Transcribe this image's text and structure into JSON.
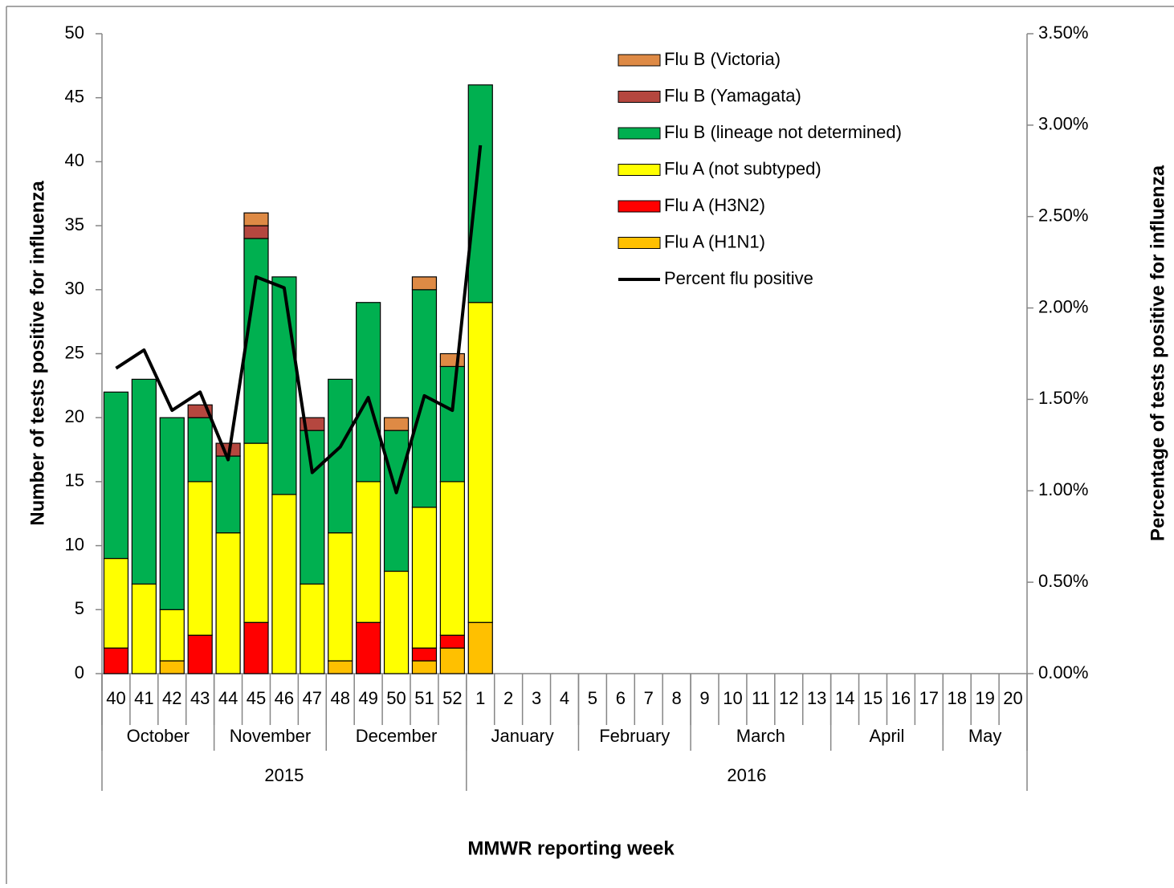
{
  "chart_data": {
    "type": "bar",
    "stacked": true,
    "x_title": "MMWR reporting week",
    "y_title": "Number of tests positive for influenza",
    "y2_title": "Percentage  of  tests  positive for influenza",
    "categories": [
      "40",
      "41",
      "42",
      "43",
      "44",
      "45",
      "46",
      "47",
      "48",
      "49",
      "50",
      "51",
      "52",
      "1",
      "2",
      "3",
      "4",
      "5",
      "6",
      "7",
      "8",
      "9",
      "10",
      "11",
      "12",
      "13",
      "14",
      "15",
      "16",
      "17",
      "18",
      "19",
      "20"
    ],
    "months": [
      "October",
      null,
      null,
      null,
      "November",
      null,
      null,
      null,
      "December",
      null,
      null,
      null,
      null,
      "January",
      null,
      null,
      null,
      "February",
      null,
      null,
      null,
      "March",
      null,
      null,
      null,
      null,
      "April",
      null,
      null,
      null,
      "May",
      null,
      null
    ],
    "years": [
      "2015",
      null,
      null,
      null,
      null,
      null,
      null,
      null,
      null,
      null,
      null,
      null,
      null,
      "2016",
      null,
      null,
      null,
      null,
      null,
      null,
      null,
      null,
      null,
      null,
      null,
      null,
      null,
      null,
      null,
      null,
      null,
      null,
      null
    ],
    "ylim": [
      0,
      50
    ],
    "yticks": [
      0,
      5,
      10,
      15,
      20,
      25,
      30,
      35,
      40,
      45,
      50
    ],
    "y2lim": [
      0,
      3.5
    ],
    "y2ticks": [
      {
        "value": 0,
        "label": "0.00%"
      },
      {
        "value": 0.5,
        "label": "0.50%"
      },
      {
        "value": 1,
        "label": "1.00%"
      },
      {
        "value": 1.5,
        "label": "1.50%"
      },
      {
        "value": 2,
        "label": "2.00%"
      },
      {
        "value": 2.5,
        "label": "2.50%"
      },
      {
        "value": 3,
        "label": "3.00%"
      },
      {
        "value": 3.5,
        "label": "3.50%"
      }
    ],
    "series": [
      {
        "name": "Flu A (H1N1)",
        "color": "#FFC000",
        "values": [
          0,
          0,
          1,
          0,
          0,
          0,
          0,
          0,
          1,
          0,
          0,
          1,
          2,
          4,
          null,
          null,
          null,
          null,
          null,
          null,
          null,
          null,
          null,
          null,
          null,
          null,
          null,
          null,
          null,
          null,
          null,
          null,
          null
        ]
      },
      {
        "name": "Flu A (H3N2)",
        "color": "#FF0000",
        "values": [
          2,
          0,
          0,
          3,
          0,
          4,
          0,
          0,
          0,
          4,
          0,
          1,
          1,
          0,
          null,
          null,
          null,
          null,
          null,
          null,
          null,
          null,
          null,
          null,
          null,
          null,
          null,
          null,
          null,
          null,
          null,
          null,
          null
        ]
      },
      {
        "name": "Flu A (not subtyped)",
        "color": "#FFFF00",
        "values": [
          7,
          7,
          4,
          12,
          11,
          14,
          14,
          7,
          10,
          11,
          8,
          11,
          12,
          25,
          null,
          null,
          null,
          null,
          null,
          null,
          null,
          null,
          null,
          null,
          null,
          null,
          null,
          null,
          null,
          null,
          null,
          null,
          null
        ]
      },
      {
        "name": "Flu B (lineage not determined)",
        "color": "#00B050",
        "values": [
          13,
          16,
          15,
          5,
          6,
          16,
          17,
          12,
          12,
          14,
          11,
          17,
          9,
          17,
          null,
          null,
          null,
          null,
          null,
          null,
          null,
          null,
          null,
          null,
          null,
          null,
          null,
          null,
          null,
          null,
          null,
          null,
          null
        ]
      },
      {
        "name": "Flu B (Yamagata)",
        "color": "#B5473F",
        "values": [
          0,
          0,
          0,
          1,
          1,
          1,
          0,
          1,
          0,
          0,
          0,
          0,
          0,
          0,
          null,
          null,
          null,
          null,
          null,
          null,
          null,
          null,
          null,
          null,
          null,
          null,
          null,
          null,
          null,
          null,
          null,
          null,
          null
        ]
      },
      {
        "name": "Flu B (Victoria)",
        "color": "#DE8A45",
        "values": [
          0,
          0,
          0,
          0,
          0,
          1,
          0,
          0,
          0,
          0,
          1,
          1,
          1,
          0,
          null,
          null,
          null,
          null,
          null,
          null,
          null,
          null,
          null,
          null,
          null,
          null,
          null,
          null,
          null,
          null,
          null,
          null,
          null
        ]
      },
      {
        "name": "Percent flu positive",
        "type": "line",
        "axis": "y2",
        "color": "#000000",
        "values": [
          1.67,
          1.77,
          1.44,
          1.54,
          1.17,
          2.17,
          2.11,
          1.1,
          1.24,
          1.51,
          0.99,
          1.52,
          1.44,
          2.89,
          null,
          null,
          null,
          null,
          null,
          null,
          null,
          null,
          null,
          null,
          null,
          null,
          null,
          null,
          null,
          null,
          null,
          null,
          null
        ]
      }
    ]
  }
}
